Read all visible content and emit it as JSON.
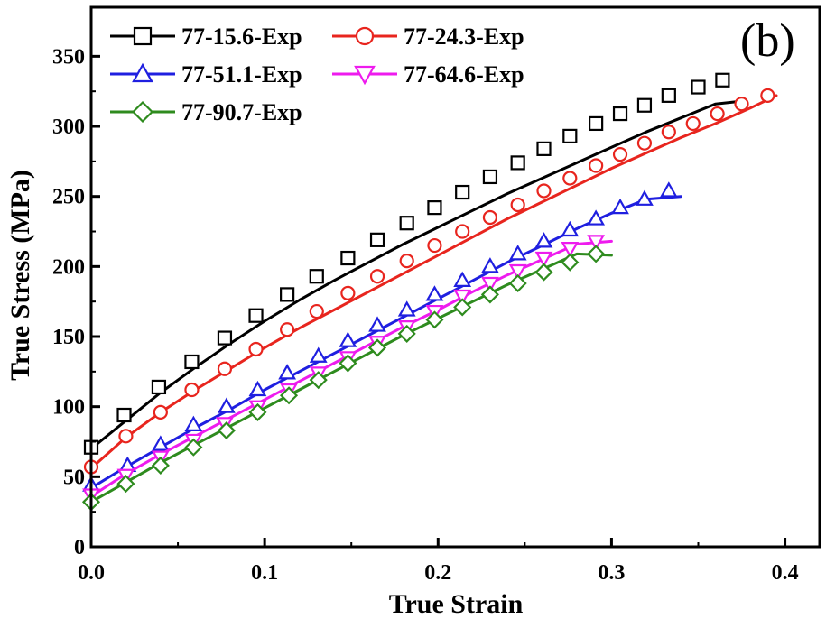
{
  "chart_data": {
    "type": "line",
    "title": "",
    "panel_label": "(b)",
    "xlabel": "True Strain",
    "ylabel": "True Stress (MPa)",
    "xlim": [
      0.0,
      0.42
    ],
    "ylim": [
      0,
      385
    ],
    "xticks": [
      0.0,
      0.1,
      0.2,
      0.3,
      0.4
    ],
    "xtick_labels": [
      "0.0",
      "0.1",
      "0.2",
      "0.3",
      "0.4"
    ],
    "yticks": [
      0,
      50,
      100,
      150,
      200,
      250,
      300,
      350
    ],
    "ytick_labels": [
      "0",
      "50",
      "100",
      "150",
      "200",
      "250",
      "300",
      "350"
    ],
    "grid": false,
    "legend_position": "top-left",
    "series": [
      {
        "name": "77-15.6-Exp",
        "color": "#000000",
        "marker": "square",
        "x": [
          0.0,
          0.02,
          0.04,
          0.06,
          0.08,
          0.1,
          0.12,
          0.14,
          0.16,
          0.18,
          0.2,
          0.22,
          0.24,
          0.26,
          0.28,
          0.3,
          0.32,
          0.34,
          0.36,
          0.375
        ],
        "y": [
          70,
          90,
          110,
          128,
          145,
          161,
          176,
          190,
          203,
          216,
          228,
          240,
          252,
          263,
          274,
          285,
          296,
          306,
          316,
          318
        ],
        "marker_x": [
          0.0,
          0.019,
          0.039,
          0.058,
          0.077,
          0.095,
          0.113,
          0.13,
          0.148,
          0.165,
          0.182,
          0.198,
          0.214,
          0.23,
          0.246,
          0.261,
          0.276,
          0.291,
          0.305,
          0.319,
          0.333,
          0.35,
          0.364
        ],
        "marker_y": [
          71,
          94,
          114,
          132,
          149,
          165,
          180,
          193,
          206,
          219,
          231,
          242,
          253,
          264,
          274,
          284,
          293,
          302,
          309,
          315,
          322,
          328,
          333
        ]
      },
      {
        "name": "77-24.3-Exp",
        "color": "#e8251e",
        "marker": "circle",
        "x": [
          0.0,
          0.02,
          0.04,
          0.06,
          0.08,
          0.1,
          0.12,
          0.14,
          0.16,
          0.18,
          0.2,
          0.22,
          0.24,
          0.26,
          0.28,
          0.3,
          0.32,
          0.34,
          0.36,
          0.38,
          0.395
        ],
        "y": [
          56,
          78,
          96,
          112,
          127,
          142,
          156,
          169,
          182,
          195,
          208,
          221,
          234,
          246,
          258,
          270,
          281,
          292,
          302,
          313,
          322
        ],
        "marker_x": [
          0.0,
          0.02,
          0.04,
          0.058,
          0.077,
          0.095,
          0.113,
          0.13,
          0.148,
          0.165,
          0.182,
          0.198,
          0.214,
          0.23,
          0.246,
          0.261,
          0.276,
          0.291,
          0.305,
          0.319,
          0.333,
          0.347,
          0.361,
          0.375,
          0.39
        ],
        "marker_y": [
          57,
          79,
          96,
          112,
          127,
          141,
          155,
          168,
          181,
          193,
          204,
          215,
          225,
          235,
          244,
          254,
          263,
          272,
          280,
          288,
          296,
          302,
          309,
          316,
          322
        ]
      },
      {
        "name": "77-51.1-Exp",
        "color": "#1f1fe0",
        "marker": "triangle-up",
        "x": [
          0.0,
          0.02,
          0.04,
          0.06,
          0.08,
          0.1,
          0.12,
          0.14,
          0.16,
          0.18,
          0.2,
          0.22,
          0.24,
          0.26,
          0.28,
          0.3,
          0.32,
          0.34
        ],
        "y": [
          42,
          57,
          71,
          85,
          98,
          112,
          125,
          138,
          151,
          164,
          177,
          190,
          203,
          215,
          227,
          238,
          248,
          250
        ],
        "marker_x": [
          0.0,
          0.021,
          0.04,
          0.059,
          0.078,
          0.096,
          0.113,
          0.131,
          0.148,
          0.165,
          0.182,
          0.198,
          0.214,
          0.23,
          0.246,
          0.261,
          0.276,
          0.291,
          0.305,
          0.319,
          0.333
        ],
        "marker_y": [
          44,
          58,
          73,
          87,
          100,
          112,
          124,
          136,
          147,
          158,
          169,
          180,
          190,
          200,
          209,
          218,
          226,
          234,
          242,
          248,
          254
        ]
      },
      {
        "name": "77-64.6-Exp",
        "color": "#ee1bee",
        "marker": "triangle-down",
        "x": [
          0.0,
          0.02,
          0.04,
          0.06,
          0.08,
          0.1,
          0.12,
          0.14,
          0.16,
          0.18,
          0.2,
          0.22,
          0.24,
          0.26,
          0.28,
          0.3
        ],
        "y": [
          36,
          52,
          66,
          79,
          92,
          105,
          118,
          131,
          144,
          157,
          169,
          182,
          194,
          205,
          216,
          218
        ],
        "marker_x": [
          0.0,
          0.02,
          0.04,
          0.059,
          0.077,
          0.096,
          0.114,
          0.131,
          0.148,
          0.165,
          0.182,
          0.198,
          0.214,
          0.23,
          0.246,
          0.261,
          0.276,
          0.291
        ],
        "marker_y": [
          37,
          51,
          64,
          76,
          88,
          100,
          112,
          124,
          135,
          146,
          157,
          168,
          179,
          188,
          197,
          206,
          213,
          218
        ]
      },
      {
        "name": "77-90.7-Exp",
        "color": "#2e8b1e",
        "marker": "diamond",
        "x": [
          0.0,
          0.02,
          0.04,
          0.06,
          0.08,
          0.1,
          0.12,
          0.14,
          0.16,
          0.18,
          0.2,
          0.22,
          0.24,
          0.26,
          0.28,
          0.3
        ],
        "y": [
          32,
          46,
          60,
          73,
          86,
          99,
          112,
          125,
          138,
          151,
          163,
          175,
          187,
          198,
          209,
          208
        ],
        "marker_x": [
          0.0,
          0.02,
          0.04,
          0.059,
          0.078,
          0.096,
          0.114,
          0.131,
          0.148,
          0.165,
          0.182,
          0.198,
          0.214,
          0.23,
          0.246,
          0.261,
          0.276,
          0.291
        ],
        "marker_y": [
          32,
          45,
          58,
          71,
          83,
          96,
          108,
          119,
          131,
          142,
          152,
          162,
          171,
          180,
          188,
          196,
          203,
          209
        ]
      }
    ]
  }
}
